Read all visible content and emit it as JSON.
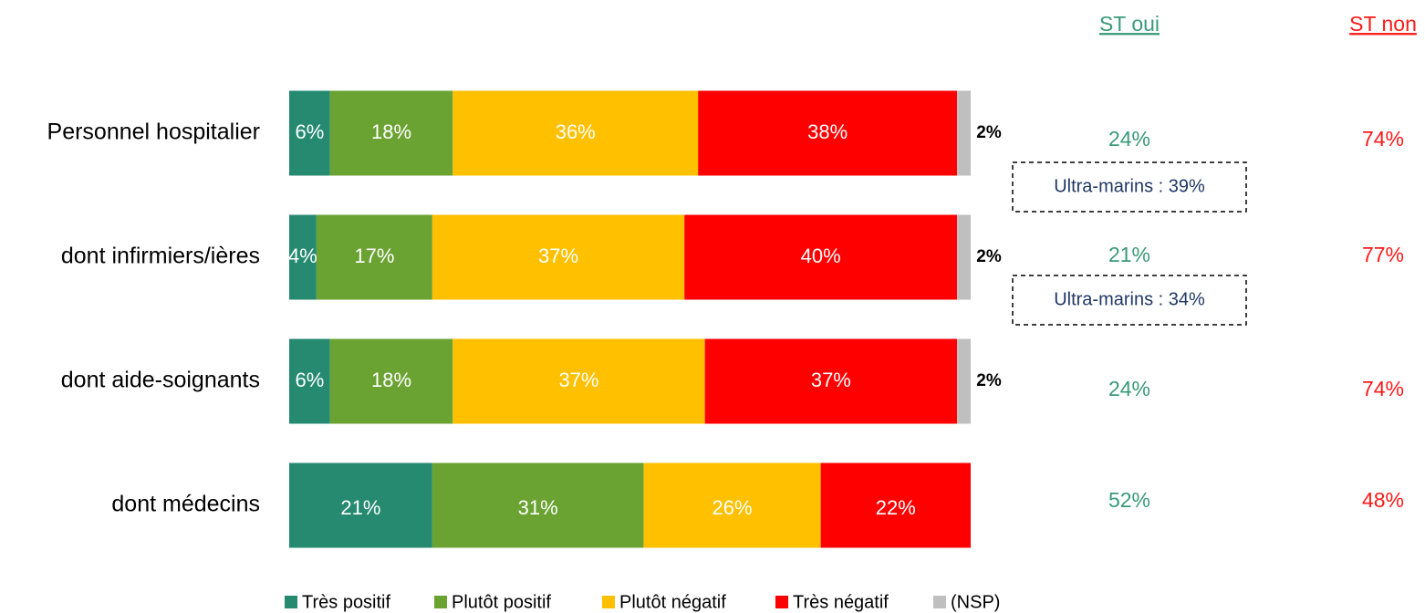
{
  "chart_data": {
    "type": "stacked-bar-horizontal",
    "categories": [
      "Personnel hospitalier",
      "dont infirmiers/ières",
      "dont aide-soignants",
      "dont médecins"
    ],
    "xlim": [
      0,
      100
    ],
    "series": [
      {
        "name": "Très positif",
        "color": "#258a70",
        "values": [
          6,
          4,
          6,
          21
        ],
        "value_labels": [
          "6%",
          "4%",
          "6%",
          "21%"
        ]
      },
      {
        "name": "Plutôt positif",
        "color": "#6ba332",
        "values": [
          18,
          17,
          18,
          31
        ],
        "value_labels": [
          "18%",
          "17%",
          "18%",
          "31%"
        ]
      },
      {
        "name": "Plutôt négatif",
        "color": "#ffc000",
        "values": [
          36,
          37,
          37,
          26
        ],
        "value_labels": [
          "36%",
          "37%",
          "37%",
          "26%"
        ]
      },
      {
        "name": "Très négatif",
        "color": "#ff0000",
        "values": [
          38,
          40,
          37,
          22
        ],
        "value_labels": [
          "38%",
          "40%",
          "37%",
          "22%"
        ]
      },
      {
        "name": "(NSP)",
        "color": "#bfbfbf",
        "values": [
          2,
          2,
          2,
          null
        ],
        "value_labels": [
          "2%",
          "2%",
          "2%",
          null
        ]
      }
    ],
    "columns": [
      {
        "name": "ST oui",
        "color": "#3a9a78",
        "values": [
          24,
          21,
          24,
          52
        ],
        "value_labels": [
          "24%",
          "21%",
          "24%",
          "52%"
        ]
      },
      {
        "name": "ST non",
        "color": "#ff1a1a",
        "values": [
          74,
          77,
          74,
          48
        ],
        "value_labels": [
          "74%",
          "77%",
          "74%",
          "48%"
        ]
      }
    ],
    "annotations": [
      "Ultra-marins : 39%",
      "Ultra-marins : 34%"
    ]
  }
}
